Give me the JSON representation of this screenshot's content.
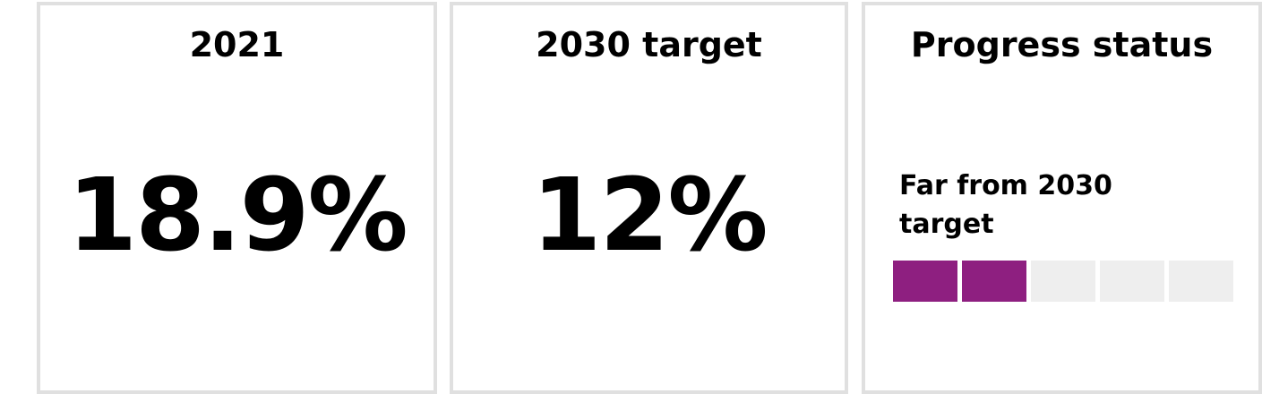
{
  "cards": [
    {
      "title": "2021",
      "value": "18.9%"
    },
    {
      "title": "2030 target",
      "value": "12%"
    }
  ],
  "progress": {
    "title": "Progress status",
    "status_label": "Far from 2030 target",
    "segments_total": 5,
    "segments_filled": 2,
    "filled_color": "#8e1f80",
    "empty_color": "#eeeeee",
    "border_color": "#e0e0e0"
  }
}
